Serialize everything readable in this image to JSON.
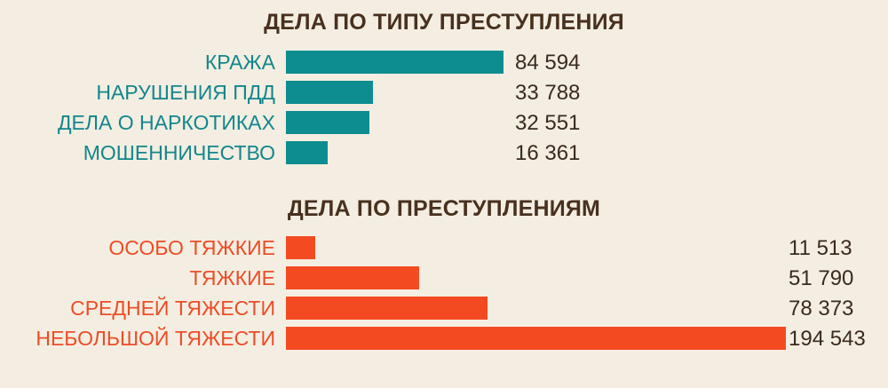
{
  "colors": {
    "background": "#f3eee1",
    "title_text": "#48301f",
    "value_text": "#3a2a20",
    "teal_bar": "#0d8d90",
    "teal_label": "#13868d",
    "orange_bar": "#f44a21",
    "orange_label": "#ee4c27"
  },
  "chart_data": [
    {
      "type": "bar",
      "orientation": "horizontal",
      "title": "ДЕЛА ПО ТИПУ ПРЕСТУПЛЕНИЯ",
      "categories": [
        "КРАЖА",
        "НАРУШЕНИЯ ПДД",
        "ДЕЛА О НАРКОТИКАХ",
        "МОШЕННИЧЕСТВО"
      ],
      "values": [
        84594,
        33788,
        32551,
        16361
      ],
      "value_labels": [
        "84 594",
        "33 788",
        "32 551",
        "16 361"
      ],
      "bar_color": "#0d8d90",
      "label_color": "#13868d",
      "xlim": [
        0,
        200000
      ],
      "grid": false,
      "legend": "none",
      "value_label_position": "right-of-bars"
    },
    {
      "type": "bar",
      "orientation": "horizontal",
      "title": "ДЕЛА ПО ПРЕСТУПЛЕНИЯМ",
      "categories": [
        "ОСОБО ТЯЖКИЕ",
        "ТЯЖКИЕ",
        "СРЕДНЕЙ ТЯЖЕСТИ",
        "НЕБОЛЬШОЙ ТЯЖЕСТИ"
      ],
      "values": [
        11513,
        51790,
        78373,
        194543
      ],
      "value_labels": [
        "11 513",
        "51 790",
        "78 373",
        "194 543"
      ],
      "bar_color": "#f44a21",
      "label_color": "#ee4c27",
      "xlim": [
        0,
        200000
      ],
      "grid": false,
      "legend": "none",
      "value_label_position": "right-of-bars"
    }
  ]
}
